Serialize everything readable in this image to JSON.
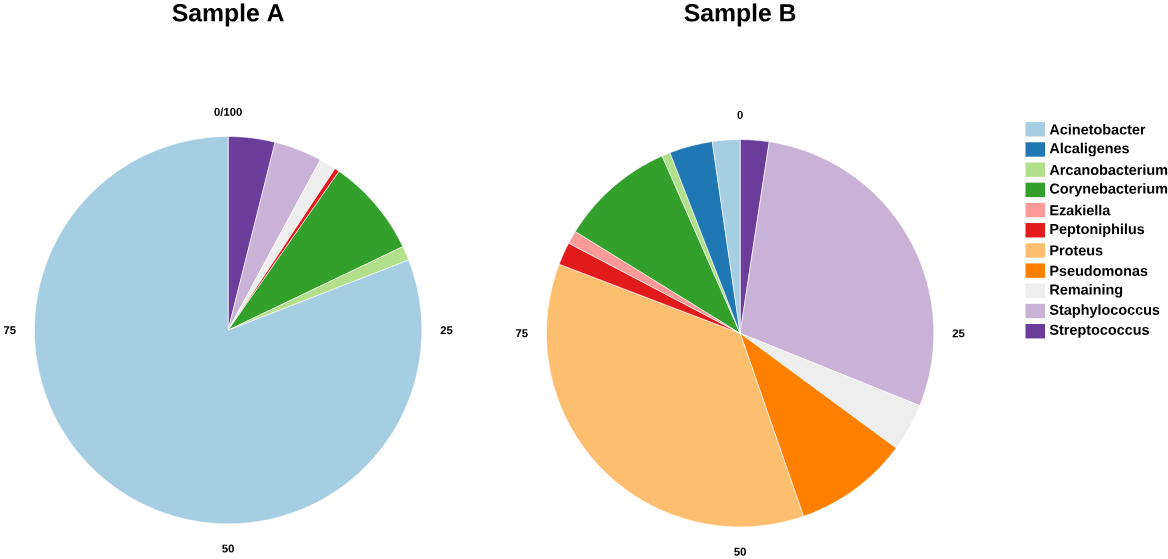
{
  "chart_data": [
    {
      "type": "pie",
      "title": "Sample A",
      "categories": [
        null,
        null,
        null,
        null,
        null,
        null,
        null
      ],
      "values": [
        80.9,
        1.2,
        8.2,
        0.4,
        1.4,
        4.0,
        3.9
      ],
      "colors": [
        "#a6cee3",
        "#b2df8a",
        "#33a02c",
        "#e31a1c",
        "#eeeeee",
        "#cab2d6",
        "#6a3d9a"
      ],
      "annotations": [
        "0/100",
        "25",
        "50",
        "75"
      ]
    },
    {
      "type": "pie",
      "title": "Sample B",
      "categories": [
        "Acinetobacter",
        "Alcaligenes",
        "Arcanobacterium",
        "Corynebacterium",
        "Ezakiella",
        "Peptoniphilus",
        "Proteus",
        "Pseudomonas",
        "Remaining",
        "Staphylococcus",
        "Streptococcus"
      ],
      "values": [
        2.3,
        3.6,
        0.7,
        9.6,
        1.1,
        1.9,
        36.1,
        9.6,
        4.0,
        28.7,
        2.4
      ],
      "colors": [
        "#a6cee3",
        "#1f78b4",
        "#b2df8a",
        "#33a02c",
        "#fb9a99",
        "#e31a1c",
        "#fdbf6f",
        "#ff7f00",
        "#eeeeee",
        "#cab2d6",
        "#6a3d9a"
      ],
      "annotations": [
        "0",
        "25",
        "50",
        "75"
      ],
      "legend": "right"
    }
  ]
}
